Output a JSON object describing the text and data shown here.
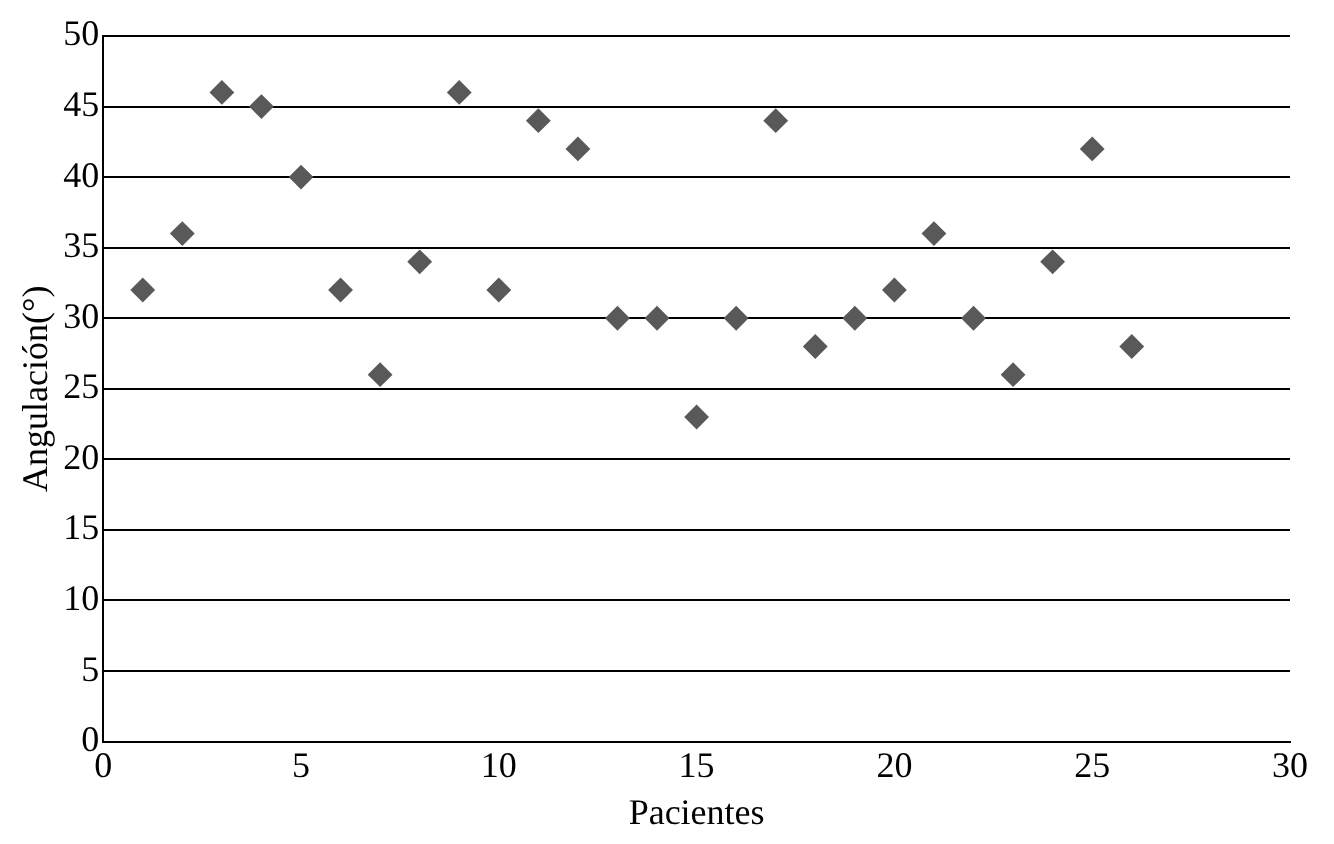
{
  "chart_data": {
    "type": "scatter",
    "xlabel": "Pacientes",
    "ylabel": "Angulación(°)",
    "x": [
      1,
      2,
      3,
      4,
      5,
      6,
      7,
      8,
      9,
      10,
      11,
      12,
      13,
      14,
      15,
      16,
      17,
      18,
      19,
      20,
      21,
      22,
      23,
      24,
      25,
      26
    ],
    "series": [
      {
        "color": "#595959",
        "values": [
          32,
          36,
          46,
          45,
          40,
          32,
          26,
          34,
          46,
          32,
          44,
          42,
          30,
          30,
          23,
          30,
          44,
          28,
          30,
          32,
          36,
          30,
          26,
          34,
          42,
          28
        ]
      }
    ],
    "xlim": [
      0,
      30
    ],
    "xticks": [
      0,
      5,
      10,
      15,
      20,
      25,
      30
    ],
    "ylim": [
      0,
      50
    ],
    "yticks": [
      0,
      5,
      10,
      15,
      20,
      25,
      30,
      35,
      40,
      45,
      50
    ],
    "grid": "y",
    "marker": "diamond",
    "legend": false
  }
}
